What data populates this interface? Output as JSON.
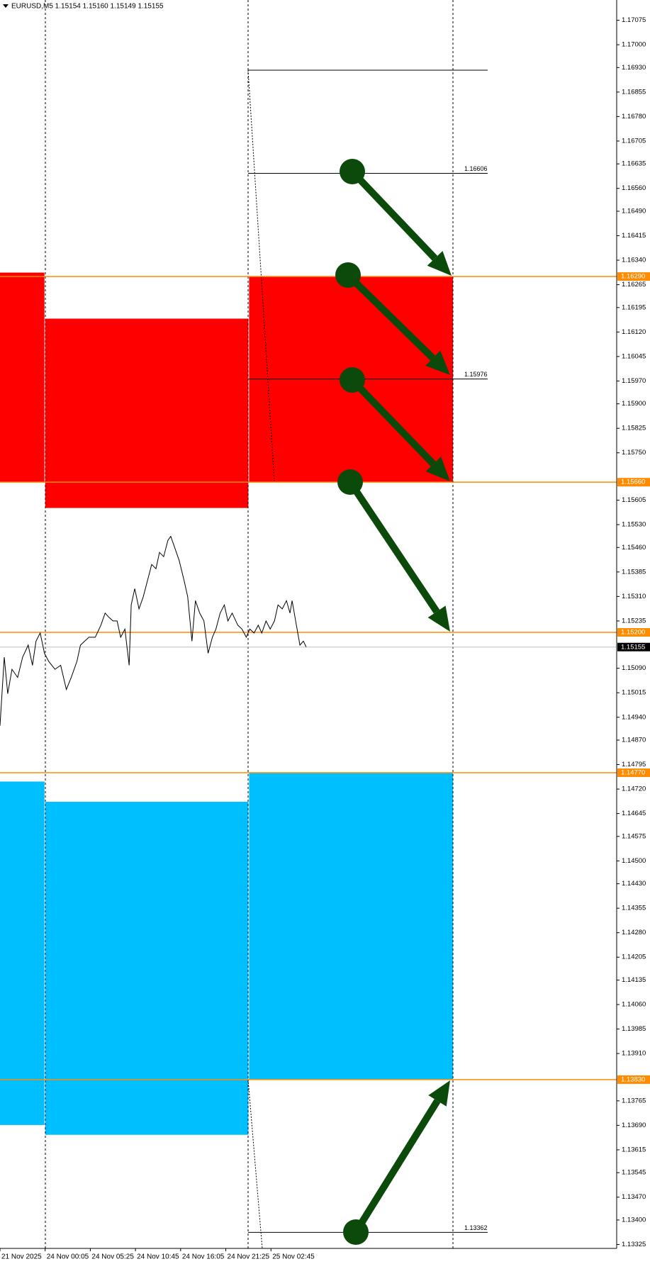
{
  "chart_data": {
    "type": "line",
    "title": "EURUSD,M5  1.15154 1.15160 1.15149 1.15155",
    "color": "#000000",
    "x": [
      0,
      6,
      11,
      17,
      25,
      32,
      40,
      46,
      51,
      57,
      63,
      69,
      78,
      86,
      94,
      101,
      109,
      114,
      120,
      126,
      135,
      143,
      149,
      154,
      160,
      166,
      171,
      177,
      183,
      186,
      191,
      197,
      203,
      209,
      215,
      221,
      226,
      232,
      238,
      242,
      248,
      254,
      261,
      266,
      272,
      277,
      283,
      289,
      295,
      301,
      306,
      312,
      318,
      323,
      329,
      337,
      343,
      349,
      354,
      360,
      366,
      371,
      377,
      383,
      389,
      394,
      400,
      406,
      411,
      414,
      419,
      425,
      430,
      434
    ],
    "values": [
      1.14914,
      1.15124,
      1.15012,
      1.15087,
      1.15062,
      1.15124,
      1.15161,
      1.15099,
      1.15173,
      1.15198,
      1.15136,
      1.15111,
      1.15087,
      1.15099,
      1.15025,
      1.15062,
      1.15111,
      1.15161,
      1.15173,
      1.15185,
      1.15185,
      1.15222,
      1.15259,
      1.15247,
      1.15235,
      1.15235,
      1.15185,
      1.1521,
      1.15099,
      1.15284,
      1.15334,
      1.15272,
      1.15309,
      1.15358,
      1.15408,
      1.15395,
      1.15445,
      1.15432,
      1.15482,
      1.15494,
      1.15457,
      1.1542,
      1.15358,
      1.15309,
      1.15173,
      1.15297,
      1.15259,
      1.15235,
      1.15136,
      1.15185,
      1.1521,
      1.15259,
      1.15284,
      1.15235,
      1.15259,
      1.15222,
      1.1521,
      1.15185,
      1.1521,
      1.15198,
      1.15222,
      1.15198,
      1.15235,
      1.1521,
      1.15235,
      1.15284,
      1.15272,
      1.15297,
      1.15259,
      1.15297,
      1.15235,
      1.15161,
      1.15173,
      1.15155
    ],
    "xlim": [
      0,
      874
    ],
    "xticks": [
      {
        "value": 0,
        "label": "21 Nov 2025"
      },
      {
        "value": 64,
        "label": "24 Nov 00:05"
      },
      {
        "value": 128,
        "label": "24 Nov 05:25"
      },
      {
        "value": 192,
        "label": "24 Nov 10:45"
      },
      {
        "value": 256,
        "label": "24 Nov 16:05"
      },
      {
        "value": 320,
        "label": "24 Nov 21:25"
      },
      {
        "value": 384,
        "label": "25 Nov 02:45"
      }
    ],
    "ylim": [
      1.13313,
      1.17137
    ],
    "yticks": [
      1.17075,
      {
        "value": 1.17,
        "label": "1.17000"
      },
      {
        "value": 1.1693,
        "label": "1.16930"
      },
      1.16855,
      {
        "value": 1.1678,
        "label": "1.16780"
      },
      1.16705,
      1.16635,
      {
        "value": 1.1656,
        "label": "1.16560"
      },
      {
        "value": 1.1649,
        "label": "1.16490"
      },
      1.16415,
      {
        "value": 1.1634,
        "label": "1.16340"
      },
      1.16265,
      1.16195,
      {
        "value": 1.1612,
        "label": "1.16120"
      },
      1.16045,
      {
        "value": 1.1597,
        "label": "1.15970"
      },
      {
        "value": 1.159,
        "label": "1.15900"
      },
      1.15825,
      {
        "value": 1.1575,
        "label": "1.15750"
      },
      1.15605,
      {
        "value": 1.1553,
        "label": "1.15530"
      },
      {
        "value": 1.1546,
        "label": "1.15460"
      },
      1.15385,
      {
        "value": 1.1531,
        "label": "1.15310"
      },
      1.15235,
      {
        "value": 1.1509,
        "label": "1.15090"
      },
      1.15015,
      {
        "value": 1.1494,
        "label": "1.14940"
      },
      {
        "value": 1.1487,
        "label": "1.14870"
      },
      1.14795,
      {
        "value": 1.1472,
        "label": "1.14720"
      },
      1.14645,
      1.14575,
      {
        "value": 1.145,
        "label": "1.14500"
      },
      {
        "value": 1.1443,
        "label": "1.14430"
      },
      1.14355,
      {
        "value": 1.1428,
        "label": "1.14280"
      },
      1.14205,
      1.14135,
      {
        "value": 1.1406,
        "label": "1.14060"
      },
      1.13985,
      {
        "value": 1.1391,
        "label": "1.13910"
      },
      1.13765,
      {
        "value": 1.1369,
        "label": "1.13690"
      },
      1.13615,
      1.13545,
      {
        "value": 1.1347,
        "label": "1.13470"
      },
      {
        "value": 1.134,
        "label": "1.13400"
      },
      1.13325
    ],
    "zones": [
      {
        "color": "#ff0000",
        "x_range": [
          0,
          63
        ],
        "y_range": [
          1.16302,
          1.1566
        ]
      },
      {
        "color": "#ff0000",
        "x_range": [
          64,
          352
        ],
        "y_range": [
          1.16161,
          1.15581
        ]
      },
      {
        "color": "#ff0000",
        "x_range": [
          353,
          642
        ],
        "y_range": [
          1.1629,
          1.1566
        ]
      },
      {
        "color": "#00bfff",
        "x_range": [
          0,
          63
        ],
        "y_range": [
          1.14743,
          1.13691
        ]
      },
      {
        "color": "#00bfff",
        "x_range": [
          64,
          352
        ],
        "y_range": [
          1.14681,
          1.13661
        ]
      },
      {
        "color": "#00bfff",
        "x_range": [
          353,
          642
        ],
        "y_range": [
          1.1477,
          1.1383
        ]
      }
    ],
    "level_color": "#ff8c00",
    "levels": [
      {
        "value": 1.1629,
        "label": "1.16290"
      },
      {
        "value": 1.1566,
        "label": "1.15660"
      },
      {
        "value": 1.152,
        "label": "1.15200"
      },
      {
        "value": 1.1477,
        "label": "1.14770"
      },
      {
        "value": 1.1383,
        "label": "1.13830"
      }
    ],
    "current_price": {
      "value": 1.15155,
      "label": "1.15155"
    },
    "trend_line_top": 1.16922,
    "fib_levels": [
      1.16606,
      1.15976,
      1.13362
    ]
  }
}
